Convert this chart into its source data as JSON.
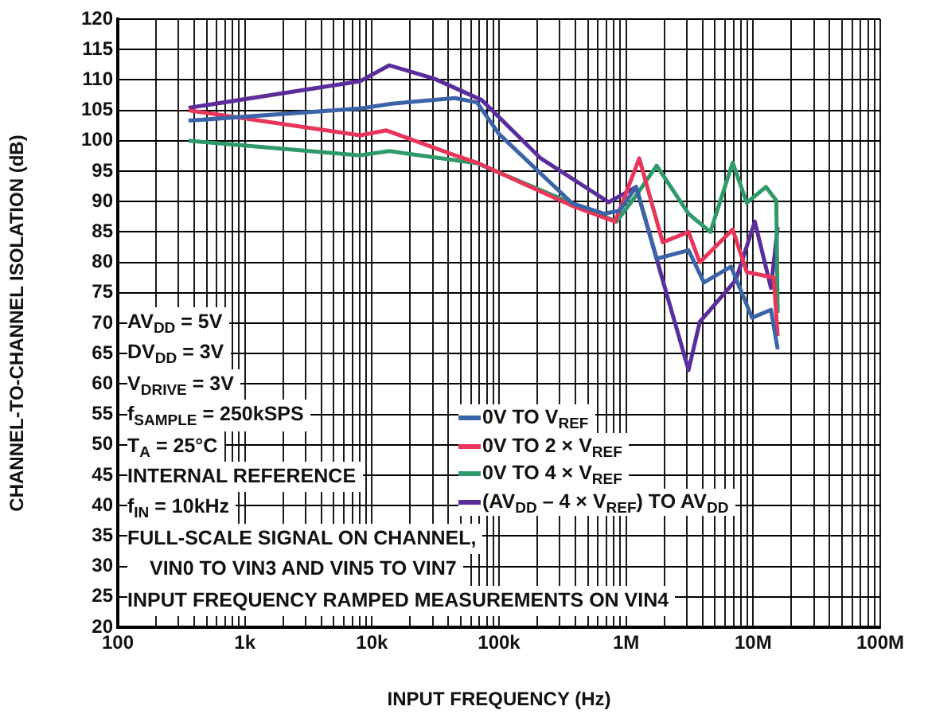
{
  "chart_data": {
    "type": "line",
    "xlabel": "INPUT FREQUENCY (Hz)",
    "ylabel": "CHANNEL-TO-CHANNEL ISOLATION (dB)",
    "log": "x",
    "grid": true,
    "legend": "bottom",
    "xlim": [
      100,
      100000000
    ],
    "ylim": [
      20,
      120
    ],
    "xticks": [
      {
        "value": 100,
        "label": "100"
      },
      {
        "value": 200,
        "label": null
      },
      {
        "value": 300,
        "label": null
      },
      {
        "value": 400,
        "label": null
      },
      {
        "value": 500,
        "label": null
      },
      {
        "value": 600,
        "label": null
      },
      {
        "value": 700,
        "label": null
      },
      {
        "value": 800,
        "label": null
      },
      {
        "value": 900,
        "label": null
      },
      {
        "value": 1000,
        "label": "1k"
      },
      {
        "value": 2000,
        "label": null
      },
      {
        "value": 3000,
        "label": null
      },
      {
        "value": 4000,
        "label": null
      },
      {
        "value": 5000,
        "label": null
      },
      {
        "value": 6000,
        "label": null
      },
      {
        "value": 7000,
        "label": null
      },
      {
        "value": 8000,
        "label": null
      },
      {
        "value": 9000,
        "label": null
      },
      {
        "value": 10000,
        "label": "10k"
      },
      {
        "value": 20000,
        "label": null
      },
      {
        "value": 30000,
        "label": null
      },
      {
        "value": 40000,
        "label": null
      },
      {
        "value": 50000,
        "label": null
      },
      {
        "value": 60000,
        "label": null
      },
      {
        "value": 70000,
        "label": null
      },
      {
        "value": 80000,
        "label": null
      },
      {
        "value": 90000,
        "label": null
      },
      {
        "value": 100000,
        "label": "100k"
      },
      {
        "value": 200000,
        "label": null
      },
      {
        "value": 300000,
        "label": null
      },
      {
        "value": 400000,
        "label": null
      },
      {
        "value": 500000,
        "label": null
      },
      {
        "value": 600000,
        "label": null
      },
      {
        "value": 700000,
        "label": null
      },
      {
        "value": 800000,
        "label": null
      },
      {
        "value": 900000,
        "label": null
      },
      {
        "value": 1000000,
        "label": "1M"
      },
      {
        "value": 2000000,
        "label": null
      },
      {
        "value": 3000000,
        "label": null
      },
      {
        "value": 4000000,
        "label": null
      },
      {
        "value": 5000000,
        "label": null
      },
      {
        "value": 6000000,
        "label": null
      },
      {
        "value": 7000000,
        "label": null
      },
      {
        "value": 8000000,
        "label": null
      },
      {
        "value": 9000000,
        "label": null
      },
      {
        "value": 10000000,
        "label": "10M"
      },
      {
        "value": 20000000,
        "label": null
      },
      {
        "value": 30000000,
        "label": null
      },
      {
        "value": 40000000,
        "label": null
      },
      {
        "value": 50000000,
        "label": null
      },
      {
        "value": 60000000,
        "label": null
      },
      {
        "value": 70000000,
        "label": null
      },
      {
        "value": 80000000,
        "label": null
      },
      {
        "value": 90000000,
        "label": null
      },
      {
        "value": 100000000,
        "label": "100M"
      }
    ],
    "yticks": [
      20,
      25,
      30,
      35,
      40,
      45,
      50,
      55,
      60,
      65,
      70,
      75,
      80,
      85,
      90,
      95,
      100,
      105,
      110,
      115,
      120
    ],
    "annotations": [
      "AV$_{DD}$ = 5V",
      "DV$_{DD}$ = 3V",
      "V$_{DRIVE}$ = 3V",
      "f$_{SAMPLE}$ = 250kSPS",
      "T$_{A}$ = 25°C",
      "INTERNAL REFERENCE",
      "f$_{IN}$ = 10kHz",
      "FULL-SCALE SIGNAL ON CHANNEL,",
      "VIN0 TO VIN3 AND VIN5 TO VIN7",
      "INPUT FREQUENCY RAMPED MEASUREMENTS ON VIN4"
    ],
    "series": [
      {
        "name": "0V TO V$_{REF}$",
        "color": "#3b64a8",
        "x": [
          360,
          8100,
          14400,
          45000,
          67000,
          100000,
          377000,
          670000,
          890000,
          1200000,
          1740000,
          3100000,
          4100000,
          6700000,
          9800000,
          13800000,
          15600000
        ],
        "values": [
          103.3,
          105.3,
          106.1,
          107.0,
          106.3,
          101.1,
          89.7,
          88.0,
          88.5,
          92.4,
          80.6,
          82.0,
          76.7,
          79.3,
          70.9,
          72.2,
          65.7
        ]
      },
      {
        "name": "0V TO 2 × V$_{REF}$",
        "color": "#e8365a",
        "x": [
          360,
          8100,
          13000,
          45000,
          67000,
          377000,
          820000,
          1270000,
          1940000,
          3100000,
          3800000,
          6900000,
          8900000,
          14500000,
          15600000
        ],
        "values": [
          105.0,
          100.9,
          101.7,
          97.6,
          96.4,
          89.3,
          86.7,
          97.1,
          83.3,
          85.0,
          80.0,
          85.4,
          78.4,
          77.5,
          67.9
        ]
      },
      {
        "name": "0V TO 4 × V$_{REF}$",
        "color": "#2e9a6a",
        "x": [
          360,
          8100,
          13700,
          67000,
          377000,
          840000,
          1200000,
          1740000,
          3100000,
          4600000,
          6900000,
          8900000,
          12600000,
          15200000,
          15600000
        ],
        "values": [
          100.0,
          97.6,
          98.3,
          96.3,
          89.7,
          86.7,
          91.0,
          95.9,
          88.0,
          85.0,
          96.4,
          89.8,
          92.4,
          90.2,
          71.7
        ]
      },
      {
        "name": "(AV$_{DD}$ – 4 × V$_{REF}$) TO AV$_{DD}$",
        "color": "#5b2d9a",
        "x": [
          360,
          8100,
          13700,
          31000,
          73000,
          213000,
          730000,
          1200000,
          1940000,
          3100000,
          3800000,
          7300000,
          10300000,
          13800000,
          15600000
        ],
        "values": [
          105.4,
          109.8,
          112.4,
          110.2,
          106.7,
          97.1,
          89.9,
          92.4,
          77.1,
          62.3,
          70.2,
          77.1,
          86.7,
          75.8,
          85.8
        ]
      }
    ]
  }
}
